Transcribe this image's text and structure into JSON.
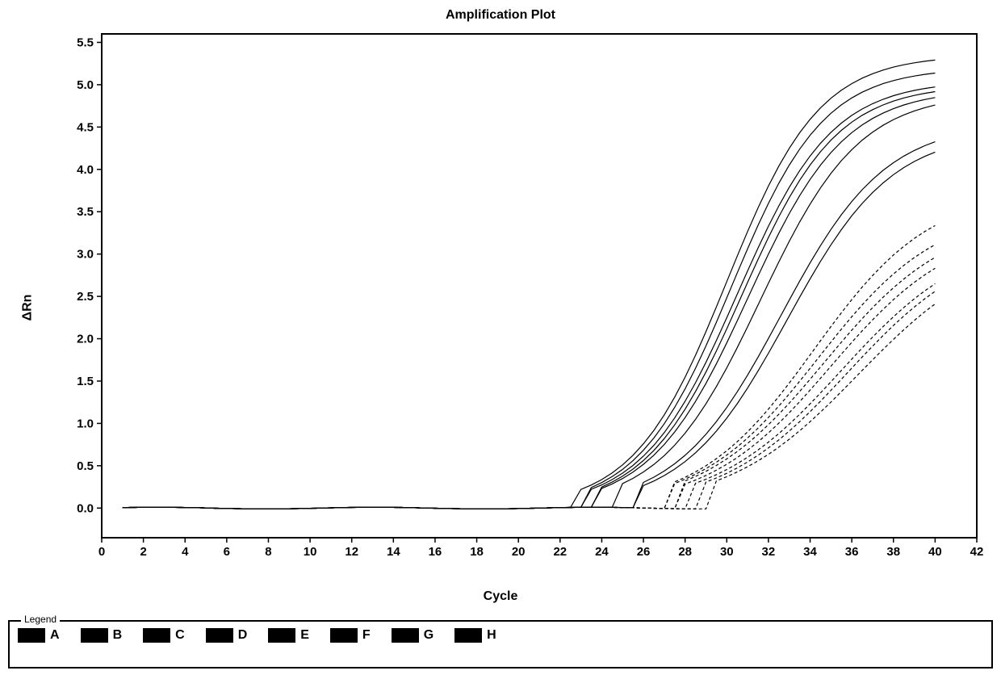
{
  "chart": {
    "type": "line",
    "title": "Amplification Plot",
    "xlabel": "Cycle",
    "ylabel": "ΔRn",
    "title_fontsize": 16,
    "label_fontsize": 16,
    "tick_fontsize": 15,
    "xlim": [
      0,
      42
    ],
    "ylim": [
      -0.35,
      5.6
    ],
    "xtick_step": 2,
    "ytick_step": 0.5,
    "ytick_min": 0.0,
    "ytick_max": 5.5,
    "background_color": "#ffffff",
    "axis_color": "#000000",
    "line_color": "#000000",
    "line_width": 1.2,
    "series": [
      {
        "name": "A",
        "ct": 23.0,
        "plateau": 5.35,
        "slope": 0.45,
        "dash": "none"
      },
      {
        "name": "A2",
        "ct": 23.2,
        "plateau": 5.2,
        "slope": 0.45,
        "dash": "none"
      },
      {
        "name": "B",
        "ct": 23.5,
        "plateau": 5.05,
        "slope": 0.44,
        "dash": "none"
      },
      {
        "name": "B2",
        "ct": 23.7,
        "plateau": 5.0,
        "slope": 0.44,
        "dash": "none"
      },
      {
        "name": "C",
        "ct": 24.0,
        "plateau": 4.95,
        "slope": 0.43,
        "dash": "none"
      },
      {
        "name": "C2",
        "ct": 24.6,
        "plateau": 4.9,
        "slope": 0.42,
        "dash": "none"
      },
      {
        "name": "D",
        "ct": 25.6,
        "plateau": 4.55,
        "slope": 0.4,
        "dash": "none"
      },
      {
        "name": "D2",
        "ct": 25.9,
        "plateau": 4.45,
        "slope": 0.4,
        "dash": "none"
      },
      {
        "name": "E",
        "ct": 27.2,
        "plateau": 3.75,
        "slope": 0.36,
        "dash": "4,3"
      },
      {
        "name": "E2",
        "ct": 27.4,
        "plateau": 3.55,
        "slope": 0.35,
        "dash": "4,3"
      },
      {
        "name": "F",
        "ct": 27.7,
        "plateau": 3.45,
        "slope": 0.34,
        "dash": "4,3"
      },
      {
        "name": "F2",
        "ct": 28.0,
        "plateau": 3.35,
        "slope": 0.34,
        "dash": "4,3"
      },
      {
        "name": "G",
        "ct": 28.5,
        "plateau": 3.25,
        "slope": 0.33,
        "dash": "4,3"
      },
      {
        "name": "G2",
        "ct": 28.8,
        "plateau": 3.2,
        "slope": 0.33,
        "dash": "4,3"
      },
      {
        "name": "H",
        "ct": 29.3,
        "plateau": 3.15,
        "slope": 0.32,
        "dash": "4,3"
      }
    ]
  },
  "legend": {
    "title": "Legend",
    "swatch_color": "#000000",
    "items": [
      "A",
      "B",
      "C",
      "D",
      "E",
      "F",
      "G",
      "H"
    ]
  }
}
